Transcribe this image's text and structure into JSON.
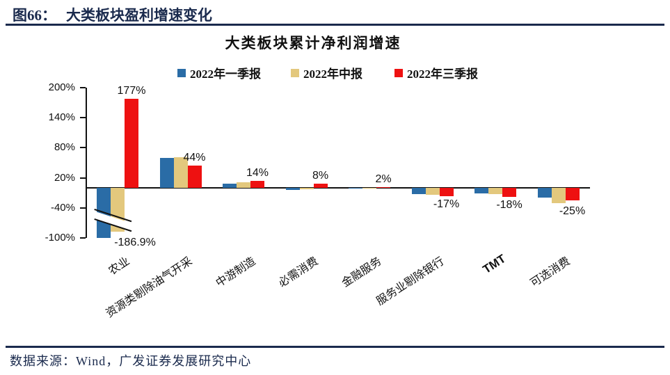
{
  "header": {
    "figure_label": "图66：",
    "title": "大类板块盈利增速变化"
  },
  "footer": {
    "source": "数据来源：Wind，广发证券发展研究中心"
  },
  "colors": {
    "navy_accent": "#1a2a4d",
    "q1_blue": "#2a6ca6",
    "h1_tan": "#e3c87d",
    "q3_red": "#ee1111"
  },
  "chart_data": {
    "type": "bar",
    "title": "大类板块累计净利润增速",
    "categories": [
      "农业",
      "资源类剔除油气开采",
      "中游制造",
      "必需消费",
      "金融服务",
      "服务业剔除银行",
      "TMT",
      "可选消费"
    ],
    "series": [
      {
        "name": "2022年一季报",
        "color": "#2a6ca6",
        "values": [
          null,
          59,
          9,
          -4,
          -1,
          -12,
          -11,
          -20
        ]
      },
      {
        "name": "2022年中报",
        "color": "#e3c87d",
        "values": [
          -186.9,
          61,
          11,
          -3,
          -1,
          -14,
          -13,
          -31
        ]
      },
      {
        "name": "2022年三季报",
        "color": "#ee1111",
        "values": [
          177,
          44,
          14,
          8,
          2,
          -17,
          -18,
          -25
        ]
      }
    ],
    "data_labels": [
      "177%",
      "44%",
      "14%",
      "8%",
      "2%",
      "-17%",
      "-18%",
      "-25%"
    ],
    "extra_label": {
      "text": "-186.9%",
      "category": "农业",
      "series": "2022年中报"
    },
    "yticks": [
      "200%",
      "140%",
      "80%",
      "20%",
      "-40%",
      "-100%"
    ],
    "ylim": [
      -100,
      200
    ],
    "grid": false,
    "legend_position": "top",
    "axis_break": {
      "present": true,
      "categories": [
        "农业"
      ],
      "note": "农业的一季报与中报柱体超出Y轴下限，以断轴符号截断显示",
      "clipped_bars": [
        {
          "category_index": 0,
          "series_index": 0,
          "draw": -100
        },
        {
          "category_index": 0,
          "series_index": 1,
          "draw": -87
        }
      ]
    }
  }
}
